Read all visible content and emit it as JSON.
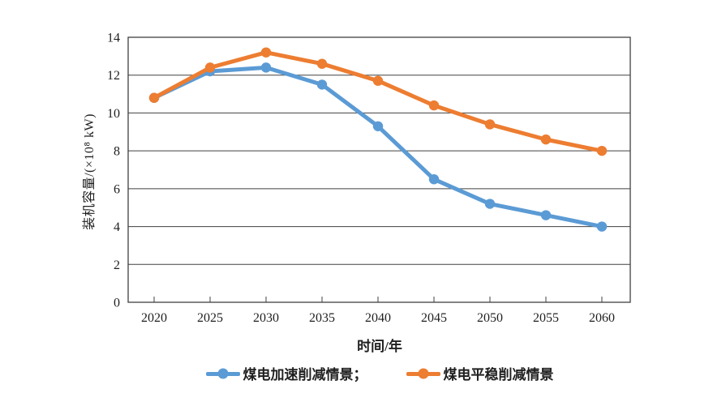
{
  "figure": {
    "background": "#ffffff",
    "axis_color": "#404040",
    "text_color": "#1f1f1f"
  },
  "legend": {
    "items": [
      {
        "label": "煤电加速削减情景；",
        "color": "#5B9BD5"
      },
      {
        "label": "煤电平稳削减情景",
        "color": "#ED7D31"
      }
    ]
  },
  "chart_data": {
    "type": "line",
    "title": "",
    "xlabel": "时间/年",
    "ylabel": "装机容量/(×10⁸ kW)",
    "x": [
      2020,
      2025,
      2030,
      2035,
      2040,
      2045,
      2050,
      2055,
      2060
    ],
    "series": [
      {
        "name": "煤电加速削减情景",
        "color": "#5B9BD5",
        "values": [
          10.8,
          12.2,
          12.4,
          11.5,
          9.3,
          6.5,
          5.2,
          4.6,
          4.0
        ]
      },
      {
        "name": "煤电平稳削减情景",
        "color": "#ED7D31",
        "values": [
          10.8,
          12.4,
          13.2,
          12.6,
          11.7,
          10.4,
          9.4,
          8.6,
          8.0
        ]
      }
    ],
    "ylim": [
      0,
      14
    ],
    "y_ticks": [
      0,
      2,
      4,
      6,
      8,
      10,
      12,
      14
    ],
    "grid": "horizontal",
    "legend_position": "bottom"
  }
}
